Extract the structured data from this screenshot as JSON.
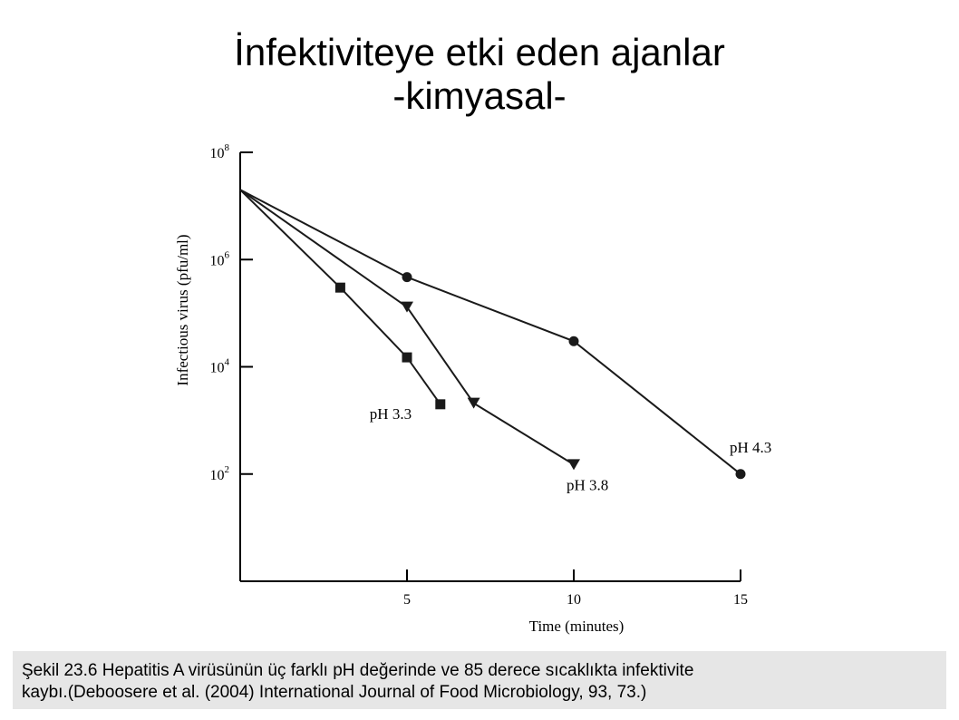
{
  "slide": {
    "title_line1": "İnfektiviteye etki eden ajanlar",
    "title_line2": "-kimyasal-"
  },
  "caption": {
    "line1": "Şekil 23.6 Hepatitis A virüsünün üç farklı pH değerinde ve 85 derece sıcaklıkta infektivite",
    "line2": "kaybı.(Deboosere et al. (2004) International Journal of Food Microbiology, 93, 73.)"
  },
  "chart_data": {
    "type": "line",
    "xlabel": "Time (minutes)",
    "ylabel": "Infectious virus (pfu/ml)",
    "xlim": [
      0,
      15
    ],
    "x_ticks": [
      5,
      10,
      15
    ],
    "yscale": "log",
    "ylim": [
      1,
      100000000
    ],
    "y_ticks": [
      {
        "value": 100,
        "base": "10",
        "exp": "2"
      },
      {
        "value": 10000,
        "base": "10",
        "exp": "4"
      },
      {
        "value": 1000000,
        "base": "10",
        "exp": "6"
      },
      {
        "value": 100000000,
        "base": "10",
        "exp": "8"
      }
    ],
    "grid": false,
    "colors": {
      "line": "#1a1a1a",
      "axis": "#000000"
    },
    "series": [
      {
        "name": "pH 3.3",
        "marker": "square",
        "points": [
          [
            0,
            20000000
          ],
          [
            3,
            300000
          ],
          [
            5,
            15000
          ],
          [
            6,
            2000
          ]
        ]
      },
      {
        "name": "pH 3.8",
        "marker": "triangle-down",
        "points": [
          [
            0,
            20000000
          ],
          [
            5,
            130000
          ],
          [
            7,
            2100
          ],
          [
            10,
            150
          ]
        ]
      },
      {
        "name": "pH 4.3",
        "marker": "circle",
        "points": [
          [
            0,
            20000000
          ],
          [
            5,
            470000
          ],
          [
            10,
            30000
          ],
          [
            15,
            100
          ]
        ]
      }
    ]
  }
}
